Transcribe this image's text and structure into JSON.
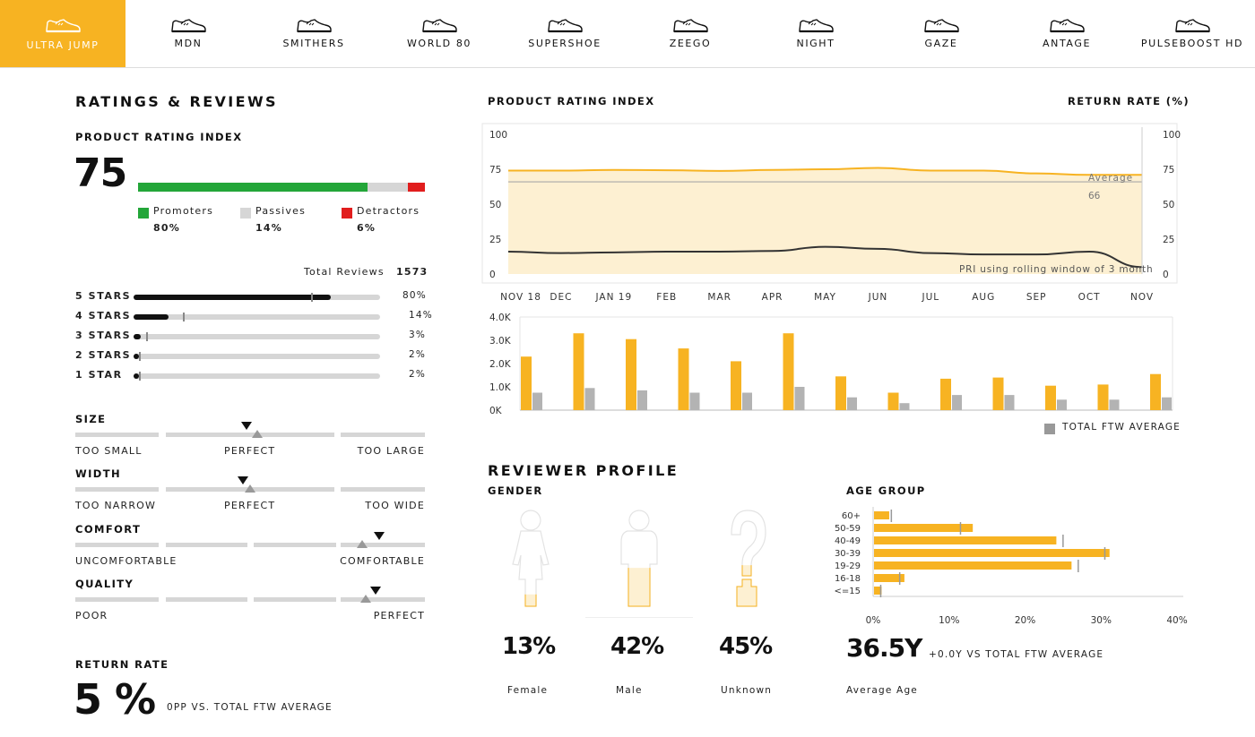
{
  "colors": {
    "accent": "#f7b322",
    "promoters": "#23a639",
    "passives": "#d6d6d6",
    "detractors": "#e11d1d",
    "average": "#a9a9a9"
  },
  "nav": [
    {
      "label": "ULTRA JUMP",
      "icon": "shoe-icon"
    },
    {
      "label": "MDN",
      "icon": "shoe-icon"
    },
    {
      "label": "SMITHERS",
      "icon": "shoe-icon"
    },
    {
      "label": "WORLD 80",
      "icon": "shoe-icon"
    },
    {
      "label": "SUPERSHOE",
      "icon": "shoe-icon"
    },
    {
      "label": "ZEEGO",
      "icon": "shoe-icon"
    },
    {
      "label": "NIGHT",
      "icon": "shoe-icon"
    },
    {
      "label": "GAZE",
      "icon": "shoe-icon"
    },
    {
      "label": "ANTAGE",
      "icon": "shoe-icon"
    },
    {
      "label": "PULSEBOOST HD",
      "icon": "shoe-icon"
    }
  ],
  "ratings": {
    "title": "RATINGS & REVIEWS",
    "pri_label": "PRODUCT RATING INDEX",
    "pri_value": "75",
    "split": [
      {
        "label": "Promoters",
        "value": "80%",
        "pct": 80
      },
      {
        "label": "Passives",
        "value": "14%",
        "pct": 14
      },
      {
        "label": "Detractors",
        "value": "6%",
        "pct": 6
      }
    ],
    "total_label": "Total Reviews",
    "total_value": "1573",
    "stars": [
      {
        "label": "5 STARS",
        "value": "80%",
        "pct": 80,
        "avg": 72
      },
      {
        "label": "4 STARS",
        "value": "14%",
        "pct": 14,
        "avg": 20
      },
      {
        "label": "3 STARS",
        "value": "3%",
        "pct": 3,
        "avg": 5
      },
      {
        "label": "2 STARS",
        "value": "2%",
        "pct": 2,
        "avg": 2
      },
      {
        "label": "1 STAR",
        "value": "2%",
        "pct": 2,
        "avg": 2
      }
    ]
  },
  "fit": [
    {
      "title": "SIZE",
      "left": "TOO SMALL",
      "mid": "PERFECT",
      "right": "TOO LARGE",
      "value": 0.49,
      "avg": 0.52
    },
    {
      "title": "WIDTH",
      "left": "TOO NARROW",
      "mid": "PERFECT",
      "right": "TOO WIDE",
      "value": 0.48,
      "avg": 0.5
    },
    {
      "title": "COMFORT",
      "left": "UNCOMFORTABLE",
      "mid": "",
      "right": "COMFORTABLE",
      "value": 0.87,
      "avg": 0.82
    },
    {
      "title": "QUALITY",
      "left": "POOR",
      "mid": "",
      "right": "PERFECT",
      "value": 0.86,
      "avg": 0.83
    }
  ],
  "return_rate": {
    "title": "RETURN RATE",
    "value": "5 %",
    "note": "0PP VS. TOTAL FTW AVERAGE"
  },
  "chart": {
    "left_title": "PRODUCT RATING INDEX",
    "right_title": "RETURN RATE (%)",
    "average_label": "Average",
    "average_value": "66",
    "note": "PRI using rolling window of 3 month",
    "legend": "TOTAL FTW AVERAGE"
  },
  "chart_data": [
    {
      "type": "line",
      "x": [
        "NOV 18",
        "DEC",
        "JAN 19",
        "FEB",
        "MAR",
        "APR",
        "MAY",
        "JUN",
        "JUL",
        "AUG",
        "SEP",
        "OCT",
        "NOV"
      ],
      "series": [
        {
          "values": [
            74,
            74,
            74.5,
            74.3,
            73.8,
            74.5,
            75,
            76,
            74,
            74,
            72,
            71,
            71
          ]
        },
        {
          "values": [
            16,
            15,
            15.5,
            16,
            16,
            16.5,
            19.5,
            18,
            15,
            14,
            14,
            16,
            5
          ]
        }
      ],
      "average": 66,
      "ylim": [
        0,
        100
      ],
      "yticks": [
        0,
        25,
        50,
        75,
        100
      ],
      "area_fill": "#fdf0d2",
      "colors": [
        "#f7b322",
        "#333333"
      ]
    },
    {
      "type": "bar",
      "categories": [
        "NOV 18",
        "DEC",
        "JAN 19",
        "FEB",
        "MAR",
        "APR",
        "MAY",
        "JUN",
        "JUL",
        "AUG",
        "SEP",
        "OCT",
        "NOV"
      ],
      "series": [
        {
          "values": [
            2300,
            3300,
            3050,
            2650,
            2100,
            3300,
            1450,
            750,
            1350,
            1400,
            1050,
            1100,
            1550
          ]
        },
        {
          "name": "TOTAL FTW AVERAGE",
          "values": [
            750,
            950,
            850,
            750,
            750,
            1000,
            550,
            300,
            650,
            650,
            450,
            450,
            550
          ]
        }
      ],
      "ylim": [
        0,
        4000
      ],
      "yticks": [
        "0K",
        "1.0K",
        "2.0K",
        "3.0K",
        "4.0K"
      ],
      "colors": [
        "#f7b322",
        "#b3b3b3"
      ]
    },
    {
      "type": "bar",
      "orientation": "horizontal",
      "categories": [
        "60+",
        "50-59",
        "40-49",
        "30-39",
        "19-29",
        "16-18",
        "<=15"
      ],
      "values": [
        2,
        13,
        24,
        31,
        26,
        4,
        1
      ],
      "average": [
        2.4,
        11.5,
        25,
        30.5,
        27,
        3.5,
        1
      ],
      "xlim": [
        0,
        40
      ],
      "xticks": [
        "0%",
        "10%",
        "20%",
        "30%",
        "40%"
      ]
    }
  ],
  "profile": {
    "title": "REVIEWER PROFILE",
    "gender_title": "GENDER",
    "gender": [
      {
        "value": "13%",
        "label": "Female",
        "fill": 0.13
      },
      {
        "value": "42%",
        "label": "Male",
        "fill": 0.42
      },
      {
        "value": "45%",
        "label": "Unknown",
        "fill": 0.45
      }
    ],
    "age_title": "AGE GROUP",
    "avg_age": "36.5Y",
    "avg_age_note": "+0.0Y VS TOTAL FTW AVERAGE",
    "avg_age_label": "Average Age"
  }
}
